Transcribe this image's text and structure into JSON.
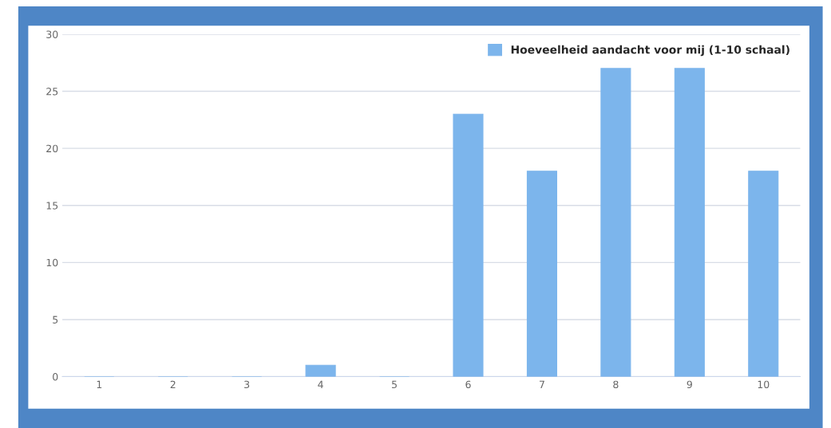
{
  "chart_data": {
    "type": "bar",
    "categories": [
      "1",
      "2",
      "3",
      "4",
      "5",
      "6",
      "7",
      "8",
      "9",
      "10"
    ],
    "series": [
      {
        "name": "Hoeveelheid aandacht voor mij (1-10 schaal)",
        "color": "#7cb5ec",
        "values": [
          0,
          0,
          0,
          1,
          0,
          23,
          18,
          27,
          27,
          18
        ]
      }
    ],
    "ylim": [
      0,
      30
    ],
    "yticks": [
      0,
      5,
      10,
      15,
      20,
      25,
      30
    ],
    "grid": "y",
    "legend": "top right"
  }
}
